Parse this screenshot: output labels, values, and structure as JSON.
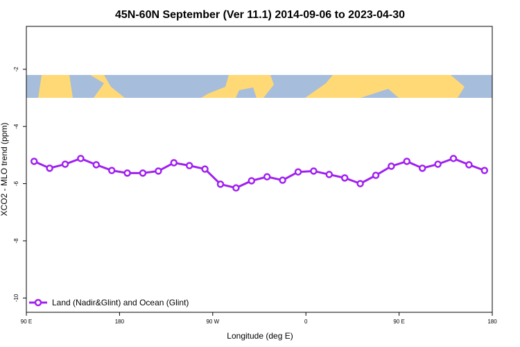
{
  "chart_data": {
    "type": "line",
    "title": "45N-60N September (Ver 11.1)   2014-09-06 to 2023-04-30",
    "x_label": "Longitude (deg E)",
    "y_label": "XCO2 - MLO trend (ppm)",
    "x": [
      97.5,
      112.5,
      127.5,
      142.5,
      157.5,
      172.5,
      187.5,
      202.5,
      217.5,
      232.5,
      247.5,
      262.5,
      277.5,
      292.5,
      307.5,
      322.5,
      337.5,
      352.5,
      367.5,
      382.5,
      397.5,
      412.5,
      427.5,
      442.5,
      457.5,
      472.5,
      487.5,
      502.5,
      517.5,
      532.5
    ],
    "series": [
      {
        "name": "Land (Nadir&Glint) and Ocean (Glint)",
        "color": "#a020f0",
        "values": [
          -5.22,
          -5.46,
          -5.32,
          -5.12,
          -5.34,
          -5.54,
          -5.63,
          -5.63,
          -5.56,
          -5.27,
          -5.37,
          -5.49,
          -6.02,
          -6.15,
          -5.9,
          -5.76,
          -5.88,
          -5.59,
          -5.56,
          -5.68,
          -5.8,
          -6.0,
          -5.71,
          -5.39,
          -5.22,
          -5.46,
          -5.32,
          -5.12,
          -5.34,
          -5.54
        ]
      }
    ],
    "xlim": [
      90,
      540
    ],
    "xticks": [
      {
        "value": 90,
        "label": "90 E"
      },
      180,
      {
        "value": 270,
        "label": "90 W"
      },
      {
        "value": 360,
        "label": "0"
      },
      {
        "value": 450,
        "label": "90 E"
      },
      {
        "value": 540,
        "label": "180"
      }
    ],
    "ylim": [
      -10.5,
      -0.5
    ],
    "yticks": [
      -10,
      -8,
      -6,
      -4,
      -2
    ],
    "legend": "bottom-left"
  }
}
